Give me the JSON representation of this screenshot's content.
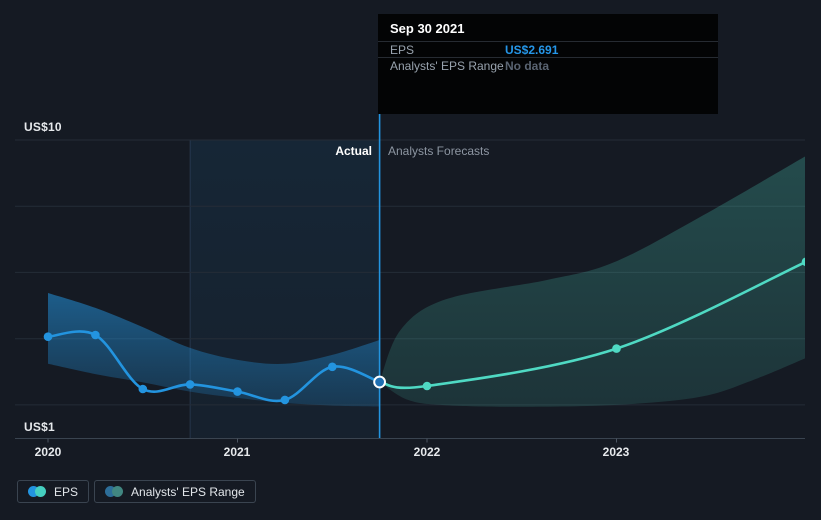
{
  "page": {
    "background": "#151a23",
    "accent_blue": "#2394df",
    "accent_teal": "#4fd9c3"
  },
  "tooltip": {
    "date": "Sep 30 2021",
    "rows": [
      {
        "label": "EPS",
        "value": "US$2.691",
        "value_color": "#2596e8"
      },
      {
        "label": "Analysts' EPS Range",
        "value": "No data",
        "value_color": "#5a6472"
      }
    ]
  },
  "zone_labels": {
    "actual": "Actual",
    "forecast": "Analysts Forecasts"
  },
  "x_labels": [
    "2020",
    "2021",
    "2022",
    "2023"
  ],
  "y_labels": {
    "top": "US$10",
    "bottom": "US$1"
  },
  "legend": [
    {
      "label": "EPS",
      "colors": [
        "#2394df",
        "#45cfc0"
      ]
    },
    {
      "label": "Analysts' EPS Range",
      "colors": [
        "#2d6e99",
        "#418781"
      ]
    }
  ],
  "chart_data": {
    "type": "line",
    "title": "EPS actual vs analysts forecast",
    "x_axis": {
      "labels": [
        "2020",
        "2021",
        "2022",
        "2023"
      ],
      "positions": [
        2020,
        2021,
        2022,
        2023
      ],
      "range": [
        2019.83,
        2024.02
      ]
    },
    "y_axis": {
      "label_top": "US$10",
      "label_bottom": "US$1",
      "min": 1,
      "max": 10,
      "gridline_values": [
        2,
        4,
        6,
        8,
        10
      ],
      "unit": "US$"
    },
    "divider_x": 2021.75,
    "highlight_band": {
      "from": 2020.75,
      "to": 2021.75
    },
    "hover": {
      "x": 2021.75,
      "value": 2.691,
      "date": "Sep 30 2021"
    },
    "series": [
      {
        "name": "EPS",
        "kind": "actual",
        "color": "#2394df",
        "points": [
          [
            2020.0,
            4.06
          ],
          [
            2020.25,
            4.11
          ],
          [
            2020.5,
            2.48
          ],
          [
            2020.75,
            2.62
          ],
          [
            2021.0,
            2.4
          ],
          [
            2021.25,
            2.15
          ],
          [
            2021.5,
            3.15
          ],
          [
            2021.75,
            2.691
          ]
        ],
        "marker_indices": [
          0,
          1,
          2,
          3,
          4,
          5,
          6
        ]
      },
      {
        "name": "EPS forecast",
        "kind": "forecast",
        "color": "#4fd9c3",
        "points": [
          [
            2021.75,
            2.691
          ],
          [
            2022.0,
            2.57
          ],
          [
            2023.0,
            3.7
          ],
          [
            2024.0,
            6.32
          ]
        ],
        "marker_indices": [
          1,
          2,
          3
        ]
      }
    ],
    "bands": [
      {
        "name": "actual EPS range",
        "color": "#2394df",
        "top": [
          [
            2020.0,
            5.38
          ],
          [
            2020.25,
            4.93
          ],
          [
            2020.5,
            4.35
          ],
          [
            2020.75,
            3.72
          ],
          [
            2021.0,
            3.36
          ],
          [
            2021.25,
            3.24
          ],
          [
            2021.5,
            3.51
          ],
          [
            2021.75,
            3.96
          ]
        ],
        "bottom": [
          [
            2020.0,
            3.24
          ],
          [
            2020.25,
            2.93
          ],
          [
            2020.5,
            2.68
          ],
          [
            2020.75,
            2.4
          ],
          [
            2021.0,
            2.21
          ],
          [
            2021.25,
            2.06
          ],
          [
            2021.5,
            1.98
          ],
          [
            2021.75,
            1.95
          ]
        ]
      },
      {
        "name": "analysts EPS range forecast",
        "color": "#4fd9c3",
        "top": [
          [
            2021.75,
            2.69
          ],
          [
            2021.86,
            4.26
          ],
          [
            2022.1,
            5.19
          ],
          [
            2022.63,
            5.77
          ],
          [
            2022.98,
            6.29
          ],
          [
            2023.44,
            7.67
          ],
          [
            2024.0,
            9.52
          ]
        ],
        "bottom": [
          [
            2021.75,
            2.69
          ],
          [
            2021.9,
            2.15
          ],
          [
            2022.1,
            1.99
          ],
          [
            2022.5,
            1.94
          ],
          [
            2023.0,
            2.0
          ],
          [
            2023.44,
            2.24
          ],
          [
            2023.72,
            2.75
          ],
          [
            2024.0,
            3.42
          ]
        ]
      }
    ]
  }
}
